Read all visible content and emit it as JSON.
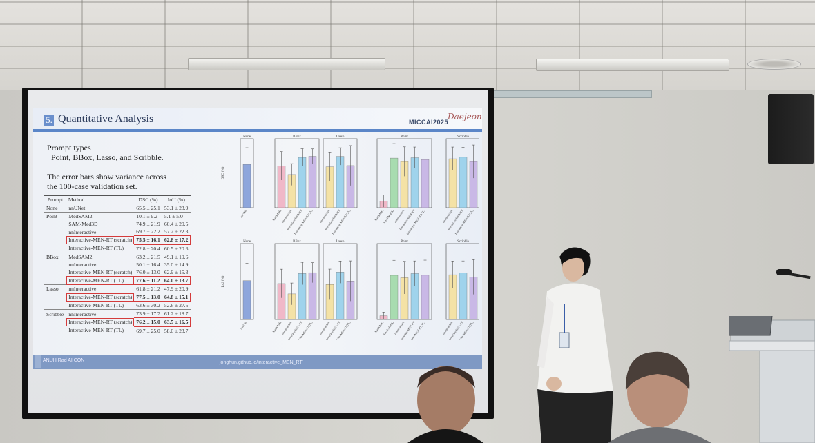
{
  "slide": {
    "section_number": "5.",
    "title": "Quantitative Analysis",
    "logo_text": "MICCAI2025",
    "logo_script": "Daejeon",
    "prompt_heading": "Prompt types",
    "prompt_list": "Point, BBox, Lasso, and Scribble.",
    "error_line1": "The error bars show variance across",
    "error_line2": "the 100-case validation set.",
    "footer_left": "ANUH Rad AI CON",
    "footer_url": "jonghun.github.io/interactive_MEN_RT"
  },
  "table": {
    "headers": [
      "Prompt",
      "Method",
      "DSC (%)",
      "IoU (%)"
    ],
    "rows": [
      {
        "prompt": "None",
        "method": "nnUNet",
        "dsc": "65.5 ± 25.1",
        "iou": "53.1 ± 23.9",
        "highlight": false,
        "sep": true
      },
      {
        "prompt": "Point",
        "method": "MedSAM2",
        "dsc": "10.1 ± 9.2",
        "iou": "5.1 ± 5.0",
        "highlight": false,
        "sep": true
      },
      {
        "prompt": "",
        "method": "SAM-Med3D",
        "dsc": "74.9 ± 21.9",
        "iou": "60.4 ± 20.5",
        "highlight": false,
        "sep": false
      },
      {
        "prompt": "",
        "method": "nnInteractive",
        "dsc": "69.7 ± 22.2",
        "iou": "57.2 ± 22.3",
        "highlight": false,
        "sep": false
      },
      {
        "prompt": "",
        "method": "Interactive-MEN-RT (scratch)",
        "dsc": "75.5 ± 16.1",
        "iou": "62.8 ± 17.2",
        "highlight": true,
        "sep": false
      },
      {
        "prompt": "",
        "method": "Interactive-MEN-RT (TL)",
        "dsc": "72.8 ± 20.4",
        "iou": "60.5 ± 20.6",
        "highlight": false,
        "sep": false
      },
      {
        "prompt": "BBox",
        "method": "MedSAM2",
        "dsc": "63.2 ± 21.5",
        "iou": "49.1 ± 19.6",
        "highlight": false,
        "sep": true
      },
      {
        "prompt": "",
        "method": "nnInteractive",
        "dsc": "50.1 ± 16.4",
        "iou": "35.0 ± 14.9",
        "highlight": false,
        "sep": false
      },
      {
        "prompt": "",
        "method": "Interactive-MEN-RT (scratch)",
        "dsc": "76.0 ± 13.0",
        "iou": "62.9 ± 15.3",
        "highlight": false,
        "sep": false
      },
      {
        "prompt": "",
        "method": "Interactive-MEN-RT (TL)",
        "dsc": "77.6 ± 11.2",
        "iou": "64.0 ± 13.7",
        "highlight": true,
        "sep": false
      },
      {
        "prompt": "Lasso",
        "method": "nnInteractive",
        "dsc": "61.8 ± 21.2",
        "iou": "47.9 ± 20.9",
        "highlight": false,
        "sep": true
      },
      {
        "prompt": "",
        "method": "Interactive-MEN-RT (scratch)",
        "dsc": "77.5 ± 13.0",
        "iou": "64.8 ± 15.1",
        "highlight": true,
        "sep": false
      },
      {
        "prompt": "",
        "method": "Interactive-MEN-RT (TL)",
        "dsc": "63.6 ± 30.2",
        "iou": "52.6 ± 27.5",
        "highlight": false,
        "sep": false
      },
      {
        "prompt": "Scribble",
        "method": "nnInteractive",
        "dsc": "73.9 ± 17.7",
        "iou": "61.2 ± 18.7",
        "highlight": false,
        "sep": true
      },
      {
        "prompt": "",
        "method": "Interactive-MEN-RT (scratch)",
        "dsc": "76.2 ± 15.0",
        "iou": "63.5 ± 16.5",
        "highlight": true,
        "sep": false
      },
      {
        "prompt": "",
        "method": "Interactive-MEN-RT (TL)",
        "dsc": "69.7 ± 25.0",
        "iou": "58.0 ± 23.7",
        "highlight": false,
        "sep": false
      }
    ]
  },
  "chart_data": [
    {
      "type": "bar",
      "metric": "DSC",
      "ylabel": "DSC (%)",
      "ylim": [
        0,
        100
      ],
      "panels": [
        {
          "title": "None",
          "bars": [
            {
              "label": "nnUNet",
              "value": 65.5,
              "err": 25.1,
              "color": "#8ea6dc"
            }
          ]
        },
        {
          "title": "BBox",
          "bars": [
            {
              "label": "MedSAM2",
              "value": 63.2,
              "err": 21.5,
              "color": "#f0b8c8"
            },
            {
              "label": "nnInteractive",
              "value": 50.1,
              "err": 16.4,
              "color": "#f4e2a6"
            },
            {
              "label": "Interactive-MEN-RT",
              "value": 76.0,
              "err": 13.0,
              "color": "#9fd3ec"
            },
            {
              "label": "Interactive-MEN-RT(TL)",
              "value": 77.6,
              "err": 11.2,
              "color": "#c9b8e6"
            }
          ]
        },
        {
          "title": "Lasso",
          "bars": [
            {
              "label": "nnInteractive",
              "value": 61.8,
              "err": 21.2,
              "color": "#f4e2a6"
            },
            {
              "label": "Interactive-MEN-RT",
              "value": 77.5,
              "err": 13.0,
              "color": "#9fd3ec"
            },
            {
              "label": "Interactive-MEN-RT(TL)",
              "value": 63.6,
              "err": 30.2,
              "color": "#c9b8e6"
            }
          ]
        },
        {
          "title": "Point",
          "bars": [
            {
              "label": "MedSAM2",
              "value": 10.1,
              "err": 9.2,
              "color": "#f0b8c8"
            },
            {
              "label": "SAM-Med3D",
              "value": 74.9,
              "err": 21.9,
              "color": "#a8dcb0"
            },
            {
              "label": "nnInteractive",
              "value": 69.7,
              "err": 22.2,
              "color": "#f4e2a6"
            },
            {
              "label": "Interactive-MEN-RT",
              "value": 75.5,
              "err": 16.1,
              "color": "#9fd3ec"
            },
            {
              "label": "Interactive-MEN-RT(TL)",
              "value": 72.8,
              "err": 20.4,
              "color": "#c9b8e6"
            }
          ]
        },
        {
          "title": "Scribble",
          "bars": [
            {
              "label": "nnInteractive",
              "value": 73.9,
              "err": 17.7,
              "color": "#f4e2a6"
            },
            {
              "label": "Interactive-MEN-RT",
              "value": 76.2,
              "err": 15.0,
              "color": "#9fd3ec"
            },
            {
              "label": "Interactive-MEN-RT(TL)",
              "value": 69.7,
              "err": 25.0,
              "color": "#c9b8e6"
            }
          ]
        }
      ]
    },
    {
      "type": "bar",
      "metric": "IoU",
      "ylabel": "IoU (%)",
      "ylim": [
        0,
        100
      ],
      "panels": [
        {
          "title": "None",
          "bars": [
            {
              "label": "nnUNet",
              "value": 53.1,
              "err": 23.9,
              "color": "#8ea6dc"
            }
          ]
        },
        {
          "title": "BBox",
          "bars": [
            {
              "label": "MedSAM2",
              "value": 49.1,
              "err": 19.6,
              "color": "#f0b8c8"
            },
            {
              "label": "nnInteractive",
              "value": 35.0,
              "err": 14.9,
              "color": "#f4e2a6"
            },
            {
              "label": "Interactive-MEN-RT",
              "value": 62.9,
              "err": 15.3,
              "color": "#9fd3ec"
            },
            {
              "label": "Interactive-MEN-RT(TL)",
              "value": 64.0,
              "err": 13.7,
              "color": "#c9b8e6"
            }
          ]
        },
        {
          "title": "Lasso",
          "bars": [
            {
              "label": "nnInteractive",
              "value": 47.9,
              "err": 20.9,
              "color": "#f4e2a6"
            },
            {
              "label": "Interactive-MEN-RT",
              "value": 64.8,
              "err": 15.1,
              "color": "#9fd3ec"
            },
            {
              "label": "Interactive-MEN-RT(TL)",
              "value": 52.6,
              "err": 27.5,
              "color": "#c9b8e6"
            }
          ]
        },
        {
          "title": "Point",
          "bars": [
            {
              "label": "MedSAM2",
              "value": 5.1,
              "err": 5.0,
              "color": "#f0b8c8"
            },
            {
              "label": "SAM-Med3D",
              "value": 60.4,
              "err": 20.5,
              "color": "#a8dcb0"
            },
            {
              "label": "nnInteractive",
              "value": 57.2,
              "err": 22.3,
              "color": "#f4e2a6"
            },
            {
              "label": "Interactive-MEN-RT",
              "value": 62.8,
              "err": 17.2,
              "color": "#9fd3ec"
            },
            {
              "label": "Interactive-MEN-RT(TL)",
              "value": 60.5,
              "err": 20.6,
              "color": "#c9b8e6"
            }
          ]
        },
        {
          "title": "Scribble",
          "bars": [
            {
              "label": "nnInteractive",
              "value": 61.2,
              "err": 18.7,
              "color": "#f4e2a6"
            },
            {
              "label": "Interactive-MEN-RT",
              "value": 63.5,
              "err": 16.5,
              "color": "#9fd3ec"
            },
            {
              "label": "Interactive-MEN-RT(TL)",
              "value": 58.0,
              "err": 23.7,
              "color": "#c9b8e6"
            }
          ]
        }
      ]
    }
  ]
}
